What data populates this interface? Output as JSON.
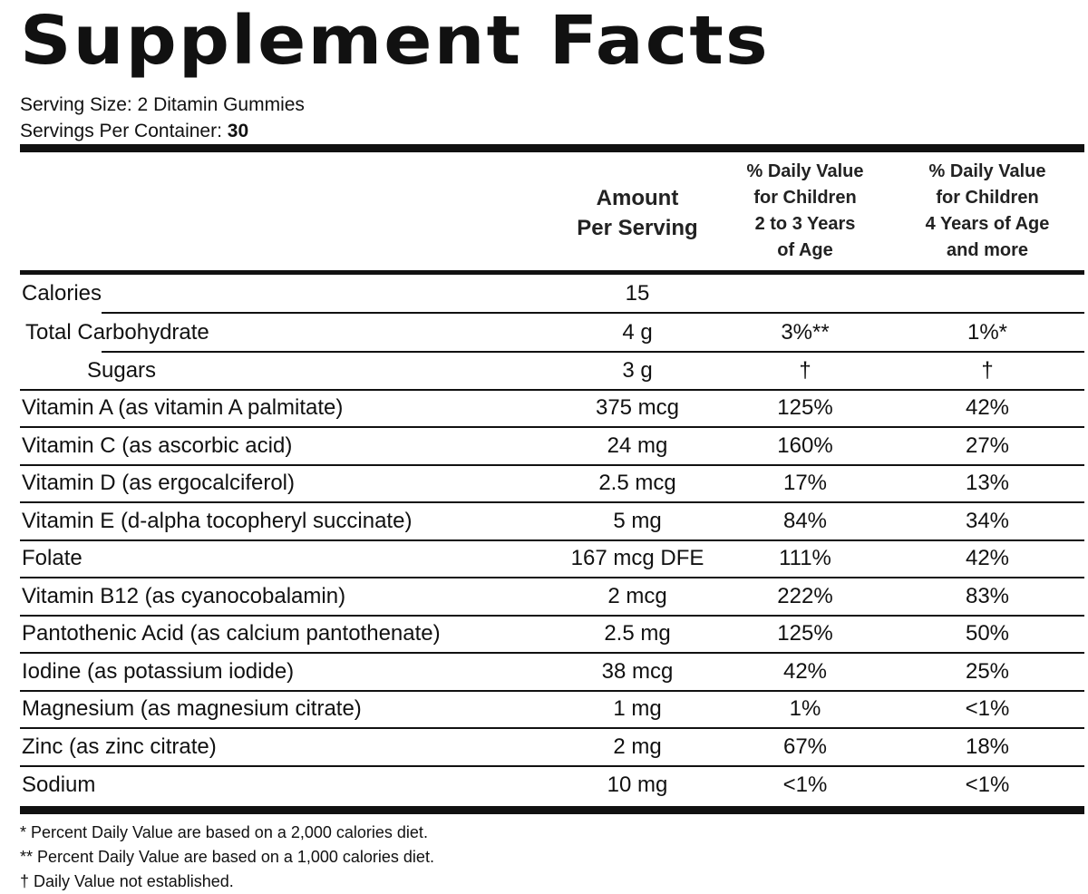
{
  "title": "Supplement Facts",
  "serving": {
    "size_label": "Serving Size: 2 Ditamin Gummies",
    "per_container_label": "Servings Per Container: ",
    "per_container_value": "30"
  },
  "columns": {
    "amount": [
      "Amount",
      "Per Serving"
    ],
    "dv_young": [
      "% Daily Value",
      "for Children",
      "2 to 3 Years",
      "of Age"
    ],
    "dv_older": [
      "% Daily Value",
      "for Children",
      "4 Years of Age",
      "and more"
    ]
  },
  "rows": [
    {
      "name": "Calories",
      "amount": "15",
      "dv_young": "",
      "dv_older": ""
    },
    {
      "name": "Total Carbohydrate",
      "amount": "4 g",
      "dv_young": "3%**",
      "dv_older": "1%*"
    },
    {
      "name": "Sugars",
      "amount": "3 g",
      "dv_young": "†",
      "dv_older": "†"
    },
    {
      "name": "Vitamin A (as vitamin A palmitate)",
      "amount": "375 mcg",
      "dv_young": "125%",
      "dv_older": "42%"
    },
    {
      "name": "Vitamin C (as ascorbic acid)",
      "amount": "24 mg",
      "dv_young": "160%",
      "dv_older": "27%"
    },
    {
      "name": "Vitamin D (as ergocalciferol)",
      "amount": "2.5 mcg",
      "dv_young": "17%",
      "dv_older": "13%"
    },
    {
      "name": "Vitamin E (d-alpha tocopheryl succinate)",
      "amount": "5 mg",
      "dv_young": "84%",
      "dv_older": "34%"
    },
    {
      "name": "Folate",
      "amount": "167 mcg DFE",
      "dv_young": "111%",
      "dv_older": "42%"
    },
    {
      "name": "Vitamin B12 (as cyanocobalamin)",
      "amount": "2 mcg",
      "dv_young": "222%",
      "dv_older": "83%"
    },
    {
      "name": "Pantothenic Acid (as calcium pantothenate)",
      "amount": "2.5 mg",
      "dv_young": "125%",
      "dv_older": "50%"
    },
    {
      "name": "Iodine (as potassium iodide)",
      "amount": "38 mcg",
      "dv_young": "42%",
      "dv_older": "25%"
    },
    {
      "name": "Magnesium (as magnesium citrate)",
      "amount": "1 mg",
      "dv_young": "1%",
      "dv_older": "<1%"
    },
    {
      "name": "Zinc (as zinc citrate)",
      "amount": "2 mg",
      "dv_young": "67%",
      "dv_older": "18%"
    },
    {
      "name": "Sodium",
      "amount": "10 mg",
      "dv_young": "<1%",
      "dv_older": "<1%"
    }
  ],
  "footnotes": [
    "* Percent Daily Value are based on a 2,000 calories diet.",
    "** Percent Daily Value are based on a 1,000 calories diet.",
    "† Daily Value not established."
  ]
}
